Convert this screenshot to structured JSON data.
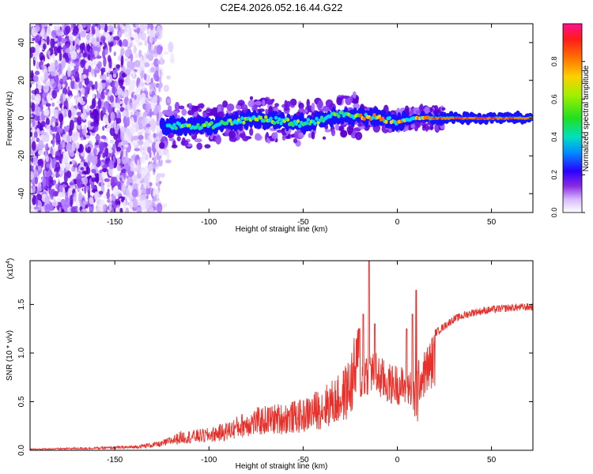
{
  "page_title": "C2E4.2026.052.16.44.G22",
  "colors": {
    "line": "#e8302a",
    "axis": "#000000",
    "scatter_purple": "#8a3cf0",
    "colormap": [
      "#ffffff",
      "#c8b4ff",
      "#6a00ff",
      "#0000ff",
      "#00c8ff",
      "#00e676",
      "#7cfc00",
      "#ffd400",
      "#ff7a00",
      "#ff2020",
      "#ff1090"
    ]
  },
  "chart_data": [
    {
      "id": "spectrogram",
      "type": "heatmap",
      "title": "C2E4.2026.052.16.44.G22",
      "xlabel": "Height of straight line (km)",
      "ylabel": "Frequency (Hz)",
      "xlim": [
        -195,
        72
      ],
      "ylim": [
        -50,
        50
      ],
      "xticks": [
        -150,
        -100,
        -50,
        0,
        50
      ],
      "yticks": [
        -40,
        -20,
        0,
        20,
        40
      ],
      "colorbar": {
        "label": "Normalized spectral amplitude",
        "range": [
          0,
          1
        ],
        "ticks": [
          "0.0",
          "0.2",
          "0.4",
          "0.6",
          "0.8"
        ],
        "tick_values": [
          0.0,
          0.2,
          0.4,
          0.6,
          0.8
        ]
      },
      "description_points": {
        "noise_region_km": [
          -195,
          -125
        ],
        "signal_track_hz": [
          [
            -125,
            -4
          ],
          [
            -100,
            -4
          ],
          [
            -75,
            0
          ],
          [
            -50,
            -3
          ],
          [
            -30,
            2
          ],
          [
            -10,
            0
          ],
          [
            0,
            -2
          ],
          [
            10,
            0
          ],
          [
            30,
            0
          ],
          [
            72,
            0
          ]
        ]
      }
    },
    {
      "id": "snr",
      "type": "line",
      "xlabel": "Height of straight line (km)",
      "ylabel": "SNR (10 * v/v)",
      "y_multiplier": "(x10",
      "y_multiplier_exp": "4",
      "xlim": [
        -195,
        72
      ],
      "ylim": [
        0,
        1.95
      ],
      "xticks": [
        -150,
        -100,
        -50,
        0,
        50
      ],
      "yticks": [
        "0.0",
        "0.5",
        "1.0",
        "1.5"
      ],
      "ytick_values": [
        0.0,
        0.5,
        1.0,
        1.5
      ],
      "series": [
        {
          "name": "SNR",
          "envelope": [
            [
              -195,
              0.01
            ],
            [
              -160,
              0.02
            ],
            [
              -140,
              0.03
            ],
            [
              -125,
              0.06
            ],
            [
              -115,
              0.12
            ],
            [
              -100,
              0.14
            ],
            [
              -90,
              0.18
            ],
            [
              -80,
              0.25
            ],
            [
              -70,
              0.28
            ],
            [
              -60,
              0.3
            ],
            [
              -50,
              0.32
            ],
            [
              -40,
              0.4
            ],
            [
              -30,
              0.48
            ],
            [
              -25,
              0.6
            ],
            [
              -20,
              0.85
            ],
            [
              -15,
              1.05
            ],
            [
              -10,
              0.95
            ],
            [
              -5,
              0.85
            ],
            [
              0,
              0.85
            ],
            [
              5,
              0.8
            ],
            [
              10,
              0.85
            ],
            [
              15,
              1.0
            ],
            [
              20,
              1.2
            ],
            [
              30,
              1.35
            ],
            [
              40,
              1.42
            ],
            [
              50,
              1.45
            ],
            [
              60,
              1.47
            ],
            [
              72,
              1.48
            ]
          ],
          "spikes": [
            [
              -15,
              1.95
            ],
            [
              -18,
              1.4
            ],
            [
              -12,
              1.3
            ],
            [
              -20,
              1.25
            ],
            [
              10,
              1.65
            ],
            [
              8,
              1.4
            ],
            [
              5,
              1.25
            ]
          ]
        }
      ]
    }
  ]
}
